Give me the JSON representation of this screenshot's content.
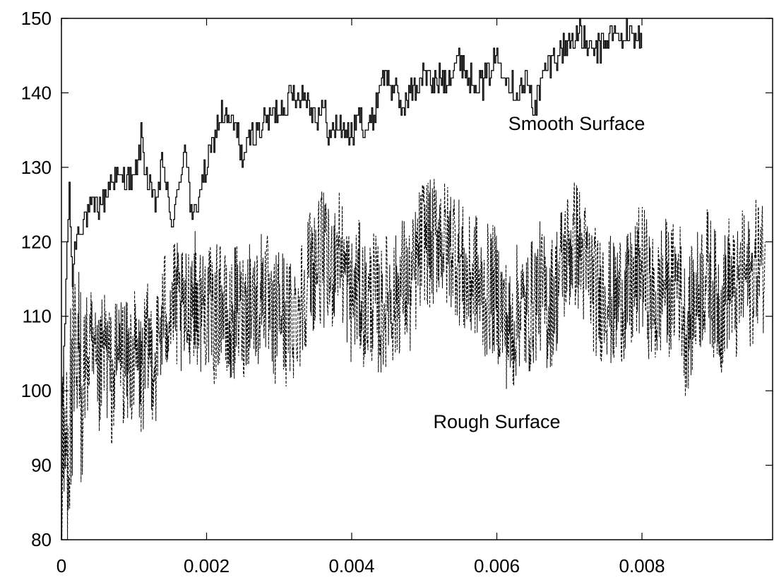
{
  "chart_data": {
    "type": "line",
    "title": "",
    "xlabel": "",
    "ylabel": "",
    "xlim": [
      0,
      0.0098
    ],
    "ylim": [
      80,
      150
    ],
    "x_ticks": [
      "0",
      "0.002",
      "0.004",
      "0.006",
      "0.008"
    ],
    "x_tick_values": [
      0,
      0.002,
      0.004,
      0.006,
      0.008
    ],
    "y_ticks": [
      "80",
      "90",
      "100",
      "110",
      "120",
      "130",
      "140",
      "150"
    ],
    "y_tick_values": [
      80,
      90,
      100,
      110,
      120,
      130,
      140,
      150
    ],
    "grid": false,
    "legend": "none",
    "annotations": [
      {
        "text": "Smooth Surface",
        "x": 0.0071,
        "y": 135
      },
      {
        "text": "Rough Surface",
        "x": 0.006,
        "y": 95
      }
    ],
    "series": [
      {
        "label": "Smooth Surface",
        "style": "solid-step",
        "color": "#000000",
        "x": [
          0,
          0.0001,
          0.00015,
          0.0002,
          0.0003,
          0.0004,
          0.0005,
          0.0006,
          0.0007,
          0.0008,
          0.0009,
          0.001,
          0.0011,
          0.0012,
          0.0013,
          0.0014,
          0.0015,
          0.0016,
          0.0017,
          0.0018,
          0.0019,
          0.002,
          0.0021,
          0.0022,
          0.0023,
          0.0024,
          0.0025,
          0.0026,
          0.0027,
          0.0028,
          0.0029,
          0.003,
          0.0031,
          0.0032,
          0.0033,
          0.0034,
          0.0035,
          0.0036,
          0.0037,
          0.0038,
          0.0039,
          0.004,
          0.0041,
          0.0042,
          0.0043,
          0.0044,
          0.0045,
          0.0046,
          0.0047,
          0.0048,
          0.0049,
          0.005,
          0.0051,
          0.0052,
          0.0053,
          0.0054,
          0.0055,
          0.0056,
          0.0057,
          0.0058,
          0.0059,
          0.006,
          0.0061,
          0.0062,
          0.0063,
          0.0064,
          0.0065,
          0.0066,
          0.0067,
          0.0068,
          0.0069,
          0.007,
          0.0071,
          0.0072,
          0.0073,
          0.0074,
          0.0075,
          0.0076,
          0.0077,
          0.0078,
          0.0079,
          0.008
        ],
        "values": [
          96,
          127,
          115,
          121,
          123,
          124,
          125,
          126,
          129,
          128,
          129,
          128,
          134,
          127,
          125,
          131,
          122,
          126,
          134,
          122,
          127,
          130,
          134,
          137,
          136,
          135,
          131,
          134,
          135,
          136,
          137,
          138,
          139,
          140,
          140,
          139,
          137,
          138,
          134,
          136,
          135,
          134,
          137,
          135,
          137,
          142,
          142,
          140,
          138,
          140,
          141,
          143,
          141,
          142,
          142,
          143,
          145,
          142,
          142,
          141,
          143,
          145,
          143,
          141,
          140,
          142,
          138,
          141,
          144,
          145,
          146,
          147,
          148,
          147,
          145,
          146,
          147,
          148,
          147,
          148,
          148,
          147
        ]
      },
      {
        "label": "Rough Surface",
        "style": "dashed",
        "color": "#000000",
        "x": [
          0,
          0.0001,
          0.0002,
          0.0003,
          0.0004,
          0.0005,
          0.0006,
          0.0007,
          0.0008,
          0.0009,
          0.001,
          0.0011,
          0.0012,
          0.0013,
          0.0014,
          0.0015,
          0.0016,
          0.0017,
          0.0018,
          0.0019,
          0.002,
          0.0021,
          0.0022,
          0.0023,
          0.0024,
          0.0025,
          0.0026,
          0.0027,
          0.0028,
          0.0029,
          0.003,
          0.0031,
          0.0032,
          0.0033,
          0.0034,
          0.0035,
          0.0036,
          0.0037,
          0.0038,
          0.0039,
          0.004,
          0.0041,
          0.0042,
          0.0043,
          0.0044,
          0.0045,
          0.0046,
          0.0047,
          0.0048,
          0.0049,
          0.005,
          0.0051,
          0.0052,
          0.0053,
          0.0054,
          0.0055,
          0.0056,
          0.0057,
          0.0058,
          0.0059,
          0.006,
          0.0061,
          0.0062,
          0.0063,
          0.0064,
          0.0065,
          0.0066,
          0.0067,
          0.0068,
          0.0069,
          0.007,
          0.0071,
          0.0072,
          0.0073,
          0.0074,
          0.0075,
          0.0076,
          0.0077,
          0.0078,
          0.0079,
          0.008,
          0.0081,
          0.0082,
          0.0083,
          0.0084,
          0.0085,
          0.0086,
          0.0087,
          0.0088,
          0.0089,
          0.009,
          0.0091,
          0.0092,
          0.0093,
          0.0094,
          0.0095,
          0.0096,
          0.0097
        ],
        "values": [
          88,
          96,
          101,
          103,
          105,
          100,
          106,
          101,
          106,
          103,
          105,
          102,
          106,
          104,
          110,
          112,
          111,
          109,
          114,
          111,
          112,
          109,
          113,
          107,
          111,
          110,
          113,
          111,
          115,
          107,
          112,
          109,
          110,
          112,
          116,
          117,
          118,
          115,
          120,
          116,
          112,
          114,
          111,
          113,
          110,
          113,
          112,
          115,
          113,
          117,
          121,
          119,
          122,
          119,
          120,
          117,
          114,
          116,
          112,
          114,
          113,
          110,
          107,
          112,
          110,
          112,
          114,
          111,
          113,
          117,
          119,
          120,
          117,
          115,
          112,
          114,
          111,
          113,
          112,
          114,
          117,
          113,
          111,
          115,
          113,
          116,
          108,
          111,
          114,
          116,
          113,
          111,
          115,
          112,
          116,
          114,
          118,
          116
        ]
      }
    ]
  }
}
